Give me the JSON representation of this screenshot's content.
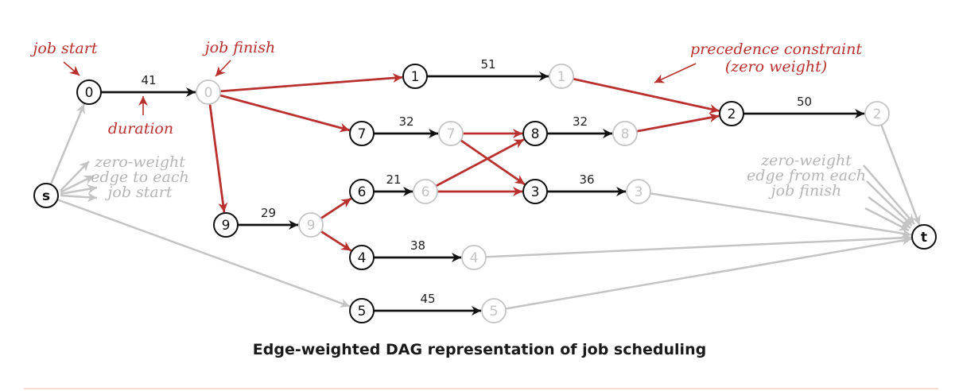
{
  "colors": {
    "black": "#111111",
    "red": "#b8312f",
    "gray": "#c4c4c4",
    "annotation_red": "#b8312f",
    "annotation_gray": "#b5b5b5"
  },
  "nodes": [
    {
      "id": "s",
      "label": "s",
      "style": "black"
    },
    {
      "id": "t",
      "label": "t",
      "style": "black"
    },
    {
      "id": "0s",
      "label": "0",
      "style": "black"
    },
    {
      "id": "0f",
      "label": "0",
      "style": "gray"
    },
    {
      "id": "1s",
      "label": "1",
      "style": "black"
    },
    {
      "id": "1f",
      "label": "1",
      "style": "gray"
    },
    {
      "id": "2s",
      "label": "2",
      "style": "black"
    },
    {
      "id": "2f",
      "label": "2",
      "style": "gray"
    },
    {
      "id": "7s",
      "label": "7",
      "style": "black"
    },
    {
      "id": "7f",
      "label": "7",
      "style": "gray"
    },
    {
      "id": "8s",
      "label": "8",
      "style": "black"
    },
    {
      "id": "8f",
      "label": "8",
      "style": "gray"
    },
    {
      "id": "6s",
      "label": "6",
      "style": "black"
    },
    {
      "id": "6f",
      "label": "6",
      "style": "gray"
    },
    {
      "id": "3s",
      "label": "3",
      "style": "black"
    },
    {
      "id": "3f",
      "label": "3",
      "style": "gray"
    },
    {
      "id": "9s",
      "label": "9",
      "style": "black"
    },
    {
      "id": "9f",
      "label": "9",
      "style": "gray"
    },
    {
      "id": "4s",
      "label": "4",
      "style": "black"
    },
    {
      "id": "4f",
      "label": "4",
      "style": "gray"
    },
    {
      "id": "5s",
      "label": "5",
      "style": "black"
    },
    {
      "id": "5f",
      "label": "5",
      "style": "gray"
    }
  ],
  "edges": [
    {
      "from": "0s",
      "to": "0f",
      "type": "black",
      "weight": "41"
    },
    {
      "from": "1s",
      "to": "1f",
      "type": "black",
      "weight": "51"
    },
    {
      "from": "2s",
      "to": "2f",
      "type": "black",
      "weight": "50"
    },
    {
      "from": "7s",
      "to": "7f",
      "type": "black",
      "weight": "32"
    },
    {
      "from": "8s",
      "to": "8f",
      "type": "black",
      "weight": "32"
    },
    {
      "from": "6s",
      "to": "6f",
      "type": "black",
      "weight": "21"
    },
    {
      "from": "3s",
      "to": "3f",
      "type": "black",
      "weight": "36"
    },
    {
      "from": "9s",
      "to": "9f",
      "type": "black",
      "weight": "29"
    },
    {
      "from": "4s",
      "to": "4f",
      "type": "black",
      "weight": "38"
    },
    {
      "from": "5s",
      "to": "5f",
      "type": "black",
      "weight": "45"
    },
    {
      "from": "0f",
      "to": "1s",
      "type": "red"
    },
    {
      "from": "0f",
      "to": "7s",
      "type": "red"
    },
    {
      "from": "0f",
      "to": "9s",
      "type": "red"
    },
    {
      "from": "1f",
      "to": "2s",
      "type": "red"
    },
    {
      "from": "8f",
      "to": "2s",
      "type": "red"
    },
    {
      "from": "7f",
      "to": "8s",
      "type": "red"
    },
    {
      "from": "7f",
      "to": "3s",
      "type": "red"
    },
    {
      "from": "6f",
      "to": "8s",
      "type": "red"
    },
    {
      "from": "6f",
      "to": "3s",
      "type": "red"
    },
    {
      "from": "9f",
      "to": "6s",
      "type": "red"
    },
    {
      "from": "9f",
      "to": "4s",
      "type": "red"
    },
    {
      "from": "s",
      "to": "0s",
      "type": "gray"
    },
    {
      "from": "s",
      "to": "5s",
      "type": "gray"
    },
    {
      "from": "2f",
      "to": "t",
      "type": "gray"
    },
    {
      "from": "3f",
      "to": "t",
      "type": "gray"
    },
    {
      "from": "4f",
      "to": "t",
      "type": "gray"
    },
    {
      "from": "5f",
      "to": "t",
      "type": "gray"
    }
  ],
  "annotations": {
    "job_start": "job start",
    "job_finish": "job finish",
    "duration": "duration",
    "precedence_line1": "precedence constraint",
    "precedence_line2": "(zero weight)",
    "zero_to_line1": "zero-weight",
    "zero_to_line2": "edge to each",
    "zero_to_line3": "job start",
    "zero_from_line1": "zero-weight",
    "zero_from_line2": "edge from each",
    "zero_from_line3": "job finish"
  },
  "caption": "Edge-weighted DAG representation of job scheduling"
}
